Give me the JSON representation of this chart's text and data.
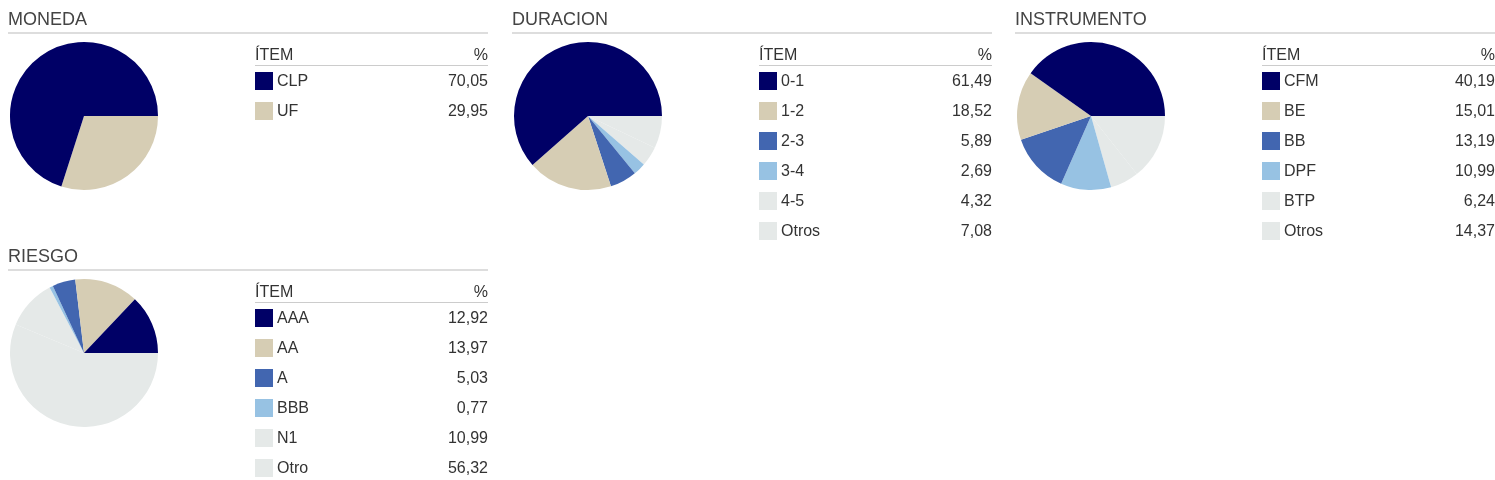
{
  "chart_data": [
    {
      "type": "pie",
      "title": "MONEDA",
      "legend": "right",
      "legend_title": "ÍTEM",
      "annotations": [
        "%"
      ],
      "categories": [
        "CLP",
        "UF"
      ],
      "values": [
        70.05,
        29.95
      ],
      "value_labels": [
        "70,05",
        "29,95"
      ],
      "colors": [
        "#000066",
        "#d6cdb4"
      ]
    },
    {
      "type": "pie",
      "title": "DURACION",
      "legend": "right",
      "legend_title": "ÍTEM",
      "annotations": [
        "%"
      ],
      "categories": [
        "0-1",
        "1-2",
        "2-3",
        "3-4",
        "4-5",
        "Otros"
      ],
      "values": [
        61.49,
        18.52,
        5.89,
        2.69,
        4.32,
        7.08
      ],
      "value_labels": [
        "61,49",
        "18,52",
        "5,89",
        "2,69",
        "4,32",
        "7,08"
      ],
      "colors": [
        "#000066",
        "#d6cdb4",
        "#4266b0",
        "#97c2e3",
        "#e5e9e8",
        "#e5e9e8"
      ]
    },
    {
      "type": "pie",
      "title": "INSTRUMENTO",
      "legend": "right",
      "legend_title": "ÍTEM",
      "annotations": [
        "%"
      ],
      "categories": [
        "CFM",
        "BE",
        "BB",
        "DPF",
        "BTP",
        "Otros"
      ],
      "values": [
        40.19,
        15.01,
        13.19,
        10.99,
        6.24,
        14.37
      ],
      "value_labels": [
        "40,19",
        "15,01",
        "13,19",
        "10,99",
        "6,24",
        "14,37"
      ],
      "colors": [
        "#000066",
        "#d6cdb4",
        "#4266b0",
        "#97c2e3",
        "#e5e9e8",
        "#e5e9e8"
      ]
    },
    {
      "type": "pie",
      "title": "RIESGO",
      "legend": "right",
      "legend_title": "ÍTEM",
      "annotations": [
        "%"
      ],
      "categories": [
        "AAA",
        "AA",
        "A",
        "BBB",
        "N1",
        "Otro"
      ],
      "values": [
        12.92,
        13.97,
        5.03,
        0.77,
        10.99,
        56.32
      ],
      "value_labels": [
        "12,92",
        "13,97",
        "5,03",
        "0,77",
        "10,99",
        "56,32"
      ],
      "colors": [
        "#000066",
        "#d6cdb4",
        "#4266b0",
        "#97c2e3",
        "#e5e9e8",
        "#e5e9e8"
      ]
    }
  ]
}
